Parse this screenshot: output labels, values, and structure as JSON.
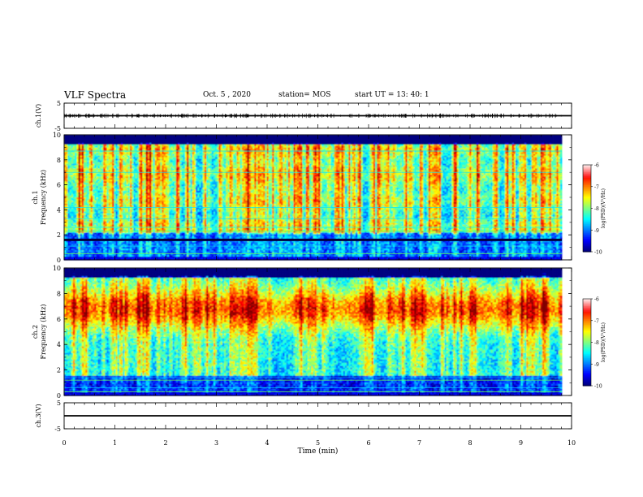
{
  "header": {
    "title": "VLF Spectra",
    "date": "Oct. 5 , 2020",
    "station": "station= MOS",
    "start": "start UT = 13: 40: 1"
  },
  "chart_data": [
    {
      "type": "line",
      "panel": "ch.1 waveform",
      "ylabel": "ch.1(V)",
      "ylim": [
        -5,
        5
      ],
      "yticks": [
        "5",
        "-5"
      ],
      "x": [
        0,
        10
      ],
      "values": [
        0,
        0
      ],
      "xlim": [
        0,
        10
      ]
    },
    {
      "type": "heatmap",
      "panel": "ch.1 spectrogram",
      "ylabel": "ch.1 Frequency (kHz)",
      "ylim": [
        0,
        10
      ],
      "yticks": [
        "0",
        "2",
        "4",
        "6",
        "8",
        "10"
      ],
      "xlim": [
        0,
        9.8
      ],
      "colorbar": {
        "label": "log(PSD)(V²/Hz)",
        "range": [
          -10,
          -6
        ],
        "ticks": [
          "-6",
          "-7",
          "-8",
          "-9",
          "-10"
        ]
      }
    },
    {
      "type": "heatmap",
      "panel": "ch.2 spectrogram",
      "ylabel": "ch.2 Frequency (kHz)",
      "ylim": [
        0,
        10
      ],
      "yticks": [
        "0",
        "2",
        "4",
        "6",
        "8",
        "10"
      ],
      "xlim": [
        0,
        9.8
      ],
      "colorbar": {
        "label": "log(PSD)(V²/Hz)",
        "range": [
          -10,
          -6
        ],
        "ticks": [
          "-6",
          "-7",
          "-8",
          "-9",
          "-10"
        ]
      }
    },
    {
      "type": "line",
      "panel": "ch.3 waveform",
      "ylabel": "ch.3(V)",
      "ylim": [
        -5,
        5
      ],
      "yticks": [
        "5",
        "-5"
      ],
      "x": [
        0,
        10
      ],
      "values": [
        0,
        0
      ],
      "xlim": [
        0,
        10
      ],
      "xlabel": "Time (min)",
      "xticks": [
        "0",
        "1",
        "2",
        "3",
        "4",
        "5",
        "6",
        "7",
        "8",
        "9",
        "10"
      ]
    }
  ]
}
